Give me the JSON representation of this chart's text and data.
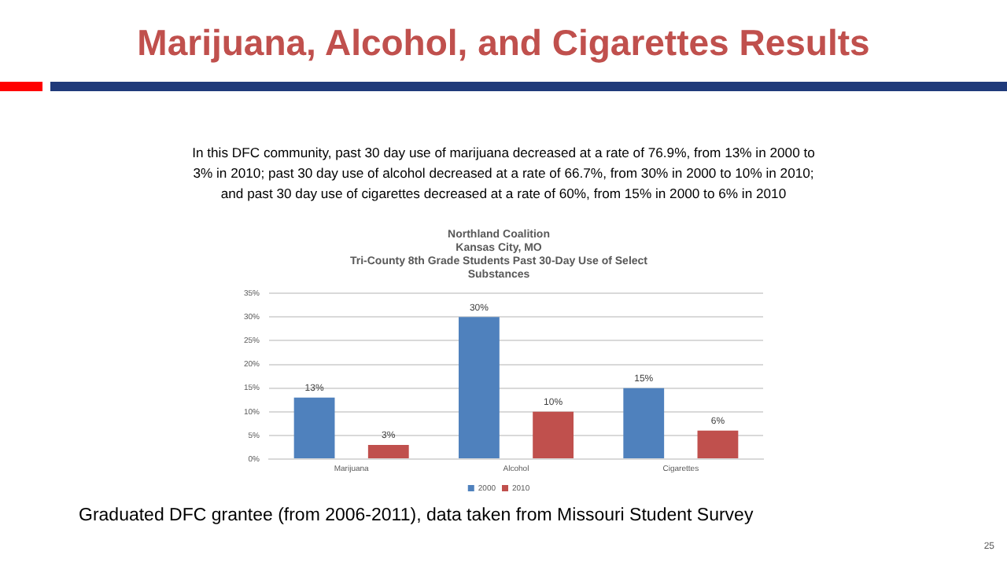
{
  "chart_data": {
    "type": "bar",
    "title": "Marijuana, Alcohol, and Cigarettes Results",
    "subtitle": "Northland Coalition\nKansas City, MO\nTri-County 8th Grade Students Past 30-Day Use of Select\nSubstances",
    "categories": [
      "Marijuana",
      "Alcohol",
      "Cigarettes"
    ],
    "series": [
      {
        "name": "2000",
        "color": "#4f81bd",
        "values": [
          13,
          30,
          15
        ],
        "value_labels": [
          "13%",
          "30%",
          "15%"
        ]
      },
      {
        "name": "2010",
        "color": "#c0504d",
        "values": [
          3,
          10,
          6
        ],
        "value_labels": [
          "3%",
          "10%",
          "6%"
        ]
      }
    ],
    "ylim": [
      0,
      35
    ],
    "yticks": [
      {
        "value": 0,
        "label": "0%"
      },
      {
        "value": 5,
        "label": "5%"
      },
      {
        "value": 10,
        "label": "10%"
      },
      {
        "value": 15,
        "label": "15%"
      },
      {
        "value": 20,
        "label": "20%"
      },
      {
        "value": 25,
        "label": "25%"
      },
      {
        "value": 30,
        "label": "30%"
      },
      {
        "value": 35,
        "label": "35%"
      }
    ],
    "grid": "y",
    "legend": "bottom",
    "annotations": [
      "In this DFC community, past 30 day use of marijuana decreased at a rate of 76.9%, from 13% in 2000 to 3% in 2010; past 30 day use of alcohol decreased at a rate of 66.7%, from 30% in 2000 to 10% in 2010; and past 30 day use of cigarettes decreased at a rate of 60%, from 15% in 2000 to 6% in 2010",
      "Graduated DFC grantee (from 2006-2011), data taken from Missouri Student Survey",
      "25"
    ]
  }
}
